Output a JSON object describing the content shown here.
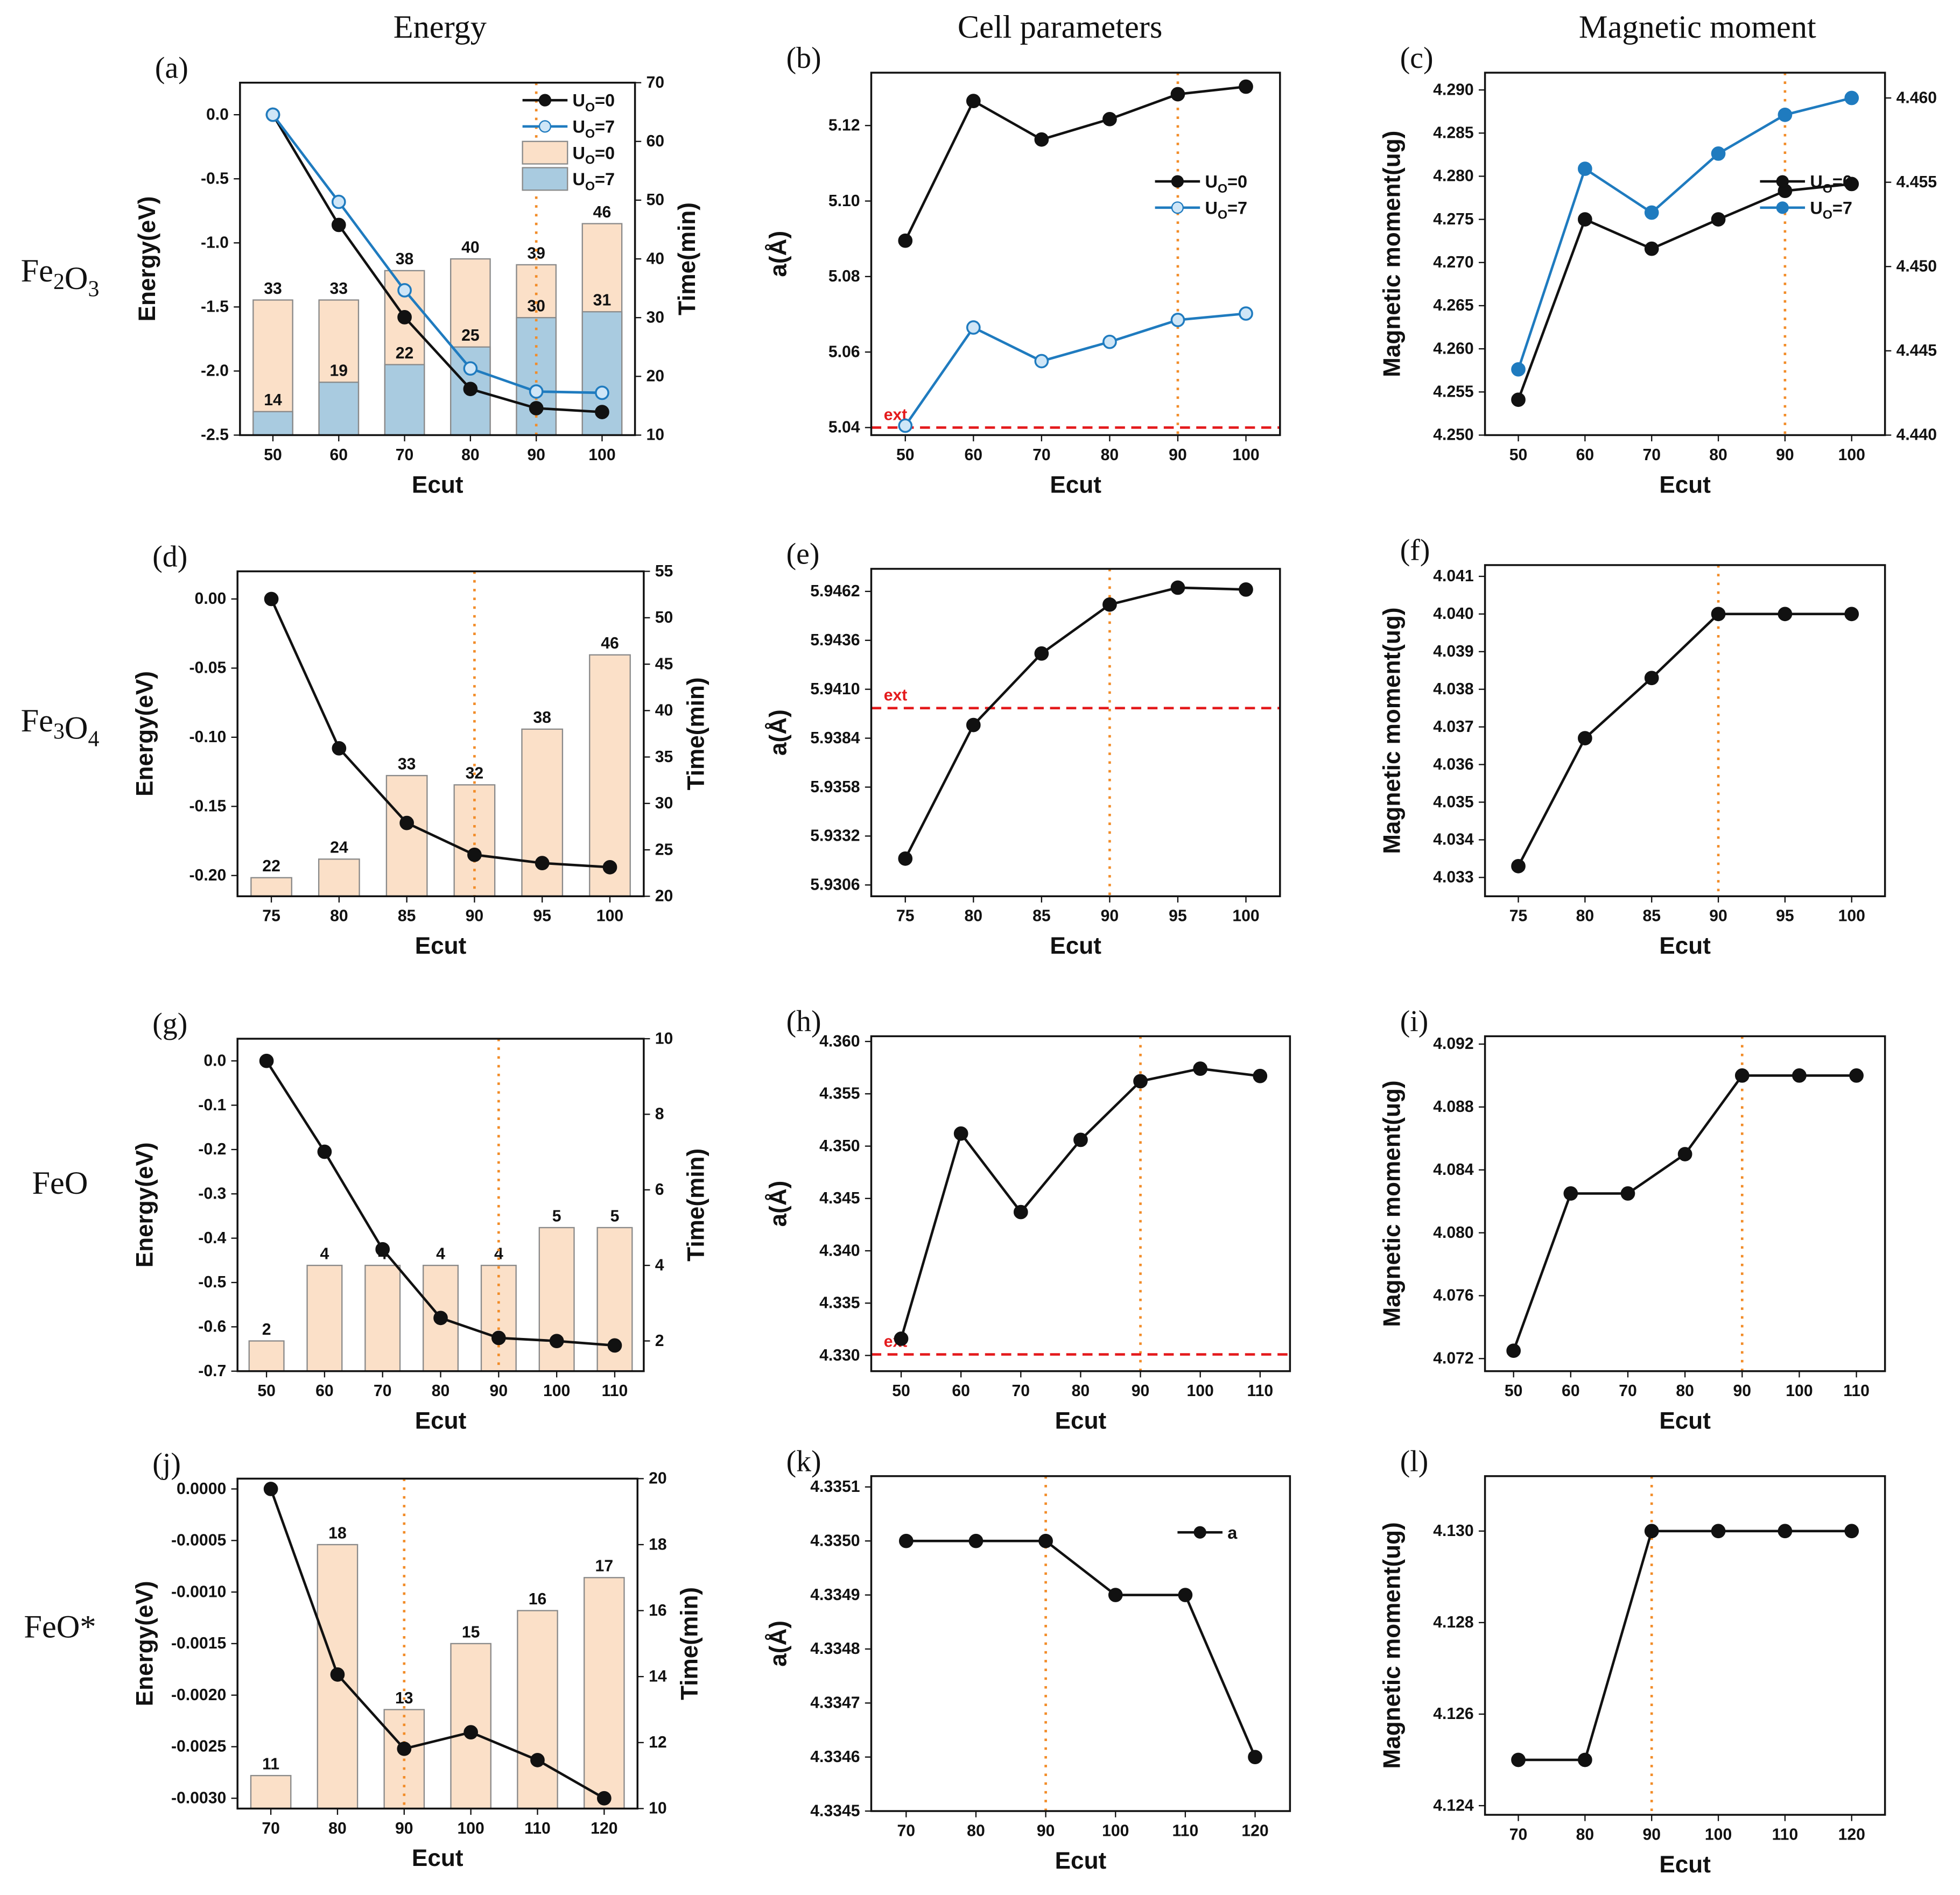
{
  "column_titles": [
    "Energy",
    "Cell parameters",
    "Magnetic moment"
  ],
  "row_labels": [
    "Fe2O3",
    "Fe3O4",
    "FeO",
    "FeO*"
  ],
  "colors": {
    "black_series": "#111111",
    "blue_series": "#1f7bbf",
    "bar_u0": "#fbe0c8",
    "bar_u7": "#a9cbe0",
    "ext_line": "#e41a1c",
    "selected_ecut": "#f28c28"
  },
  "selected_ecut": 90,
  "chart_data": [
    {
      "id": "a",
      "panel_label": "(a)",
      "type": "bar+line",
      "xlabel": "Ecut",
      "ylabel": "Energy(eV)",
      "y2label": "Time(min)",
      "x": [
        50,
        60,
        70,
        80,
        90,
        100
      ],
      "xlim": [
        45,
        105
      ],
      "ylim": [
        -2.5,
        0.25
      ],
      "yticks": [
        -2.5,
        -2.0,
        -1.5,
        -1.0,
        -0.5,
        0.0
      ],
      "yfmt": 1,
      "y2lim": [
        10,
        70
      ],
      "y2ticks": [
        10,
        20,
        30,
        40,
        50,
        60,
        70
      ],
      "y2fmt": 0,
      "series": [
        {
          "name": "UO=0",
          "values": [
            0,
            -0.86,
            -1.58,
            -2.14,
            -2.29,
            -2.32
          ],
          "color": "#111111",
          "marker": "filled"
        },
        {
          "name": "UO=7",
          "values": [
            0,
            -0.68,
            -1.37,
            -1.98,
            -2.16,
            -2.17
          ],
          "color": "#1f7bbf",
          "marker": "open"
        }
      ],
      "bars": [
        {
          "name": "UO=0",
          "values": [
            33,
            33,
            38,
            40,
            39,
            46
          ],
          "color": "#fbe0c8"
        },
        {
          "name": "UO=7",
          "values": [
            14,
            19,
            22,
            25,
            30,
            31
          ],
          "color": "#a9cbe0"
        }
      ],
      "legend": "top-right"
    },
    {
      "id": "b",
      "panel_label": "(b)",
      "type": "line",
      "xlabel": "Ecut",
      "ylabel": "a(Å)",
      "x": [
        50,
        60,
        70,
        80,
        90,
        100
      ],
      "xlim": [
        45,
        105
      ],
      "ylim": [
        5.038,
        5.134
      ],
      "yticks": [
        5.04,
        5.06,
        5.08,
        5.1,
        5.12
      ],
      "yfmt": 2,
      "series": [
        {
          "name": "UO=0",
          "values": [
            5.0895,
            5.1265,
            5.1163,
            5.1217,
            5.1283,
            5.1303
          ],
          "color": "#111111",
          "marker": "filled"
        },
        {
          "name": "UO=7",
          "values": [
            5.0405,
            5.0665,
            5.0576,
            5.0627,
            5.0685,
            5.0702
          ],
          "color": "#1f7bbf",
          "marker": "open"
        }
      ],
      "ext": {
        "label": "ext",
        "value": 5.04
      },
      "legend": "right"
    },
    {
      "id": "c",
      "panel_label": "(c)",
      "type": "line",
      "xlabel": "Ecut",
      "ylabel": "Magnetic moment(ug)",
      "x": [
        50,
        60,
        70,
        80,
        90,
        100
      ],
      "xlim": [
        45,
        105
      ],
      "ylim": [
        4.25,
        4.292
      ],
      "yticks": [
        4.25,
        4.255,
        4.26,
        4.265,
        4.27,
        4.275,
        4.28,
        4.285,
        4.29
      ],
      "yfmt": 3,
      "y2lim": [
        4.44,
        4.4615
      ],
      "y2ticks": [
        4.44,
        4.445,
        4.45,
        4.455,
        4.46
      ],
      "y2fmt": 3,
      "y2color": "#1f7bbf",
      "series": [
        {
          "name": "UO=0",
          "values": [
            4.2541,
            4.275,
            4.2716,
            4.275,
            4.2783,
            4.2791
          ],
          "color": "#111111",
          "marker": "filled"
        },
        {
          "name": "UO=7",
          "values": [
            4.4439,
            4.4558,
            4.4532,
            4.4567,
            4.459,
            4.46
          ],
          "color": "#1f7bbf",
          "marker": "filled",
          "axis": "right"
        }
      ],
      "legend": "right"
    },
    {
      "id": "d",
      "panel_label": "(d)",
      "type": "bar+line",
      "xlabel": "Ecut",
      "ylabel": "Energy(eV)",
      "y2label": "Time(min)",
      "x": [
        75,
        80,
        85,
        90,
        95,
        100
      ],
      "xlim": [
        72.5,
        102.5
      ],
      "ylim": [
        -0.215,
        0.02
      ],
      "yticks": [
        -0.2,
        -0.15,
        -0.1,
        -0.05,
        0.0
      ],
      "yfmt": 2,
      "y2lim": [
        20,
        55
      ],
      "y2ticks": [
        20,
        25,
        30,
        35,
        40,
        45,
        50,
        55
      ],
      "y2fmt": 0,
      "series": [
        {
          "name": "Energy",
          "values": [
            0,
            -0.108,
            -0.162,
            -0.185,
            -0.191,
            -0.194
          ],
          "color": "#111111",
          "marker": "filled"
        }
      ],
      "bars": [
        {
          "name": "Time",
          "values": [
            22,
            24,
            33,
            32,
            38,
            46
          ],
          "color": "#fbe0c8"
        }
      ]
    },
    {
      "id": "e",
      "panel_label": "(e)",
      "type": "line",
      "xlabel": "Ecut",
      "ylabel": "a(Å)",
      "x": [
        75,
        80,
        85,
        90,
        95,
        100
      ],
      "xlim": [
        72.5,
        102.5
      ],
      "ylim": [
        5.93,
        5.9474
      ],
      "yticks": [
        5.9306,
        5.9332,
        5.9358,
        5.9384,
        5.941,
        5.9436,
        5.9462
      ],
      "yfmt": 4,
      "series": [
        {
          "name": "a",
          "values": [
            5.932,
            5.9391,
            5.9429,
            5.9455,
            5.9464,
            5.9463
          ],
          "color": "#111111",
          "marker": "filled"
        }
      ],
      "ext": {
        "label": "ext",
        "value": 5.94
      }
    },
    {
      "id": "f",
      "panel_label": "(f)",
      "type": "line",
      "xlabel": "Ecut",
      "ylabel": "Magnetic moment(ug)",
      "x": [
        75,
        80,
        85,
        90,
        95,
        100
      ],
      "xlim": [
        72.5,
        102.5
      ],
      "ylim": [
        4.0325,
        4.0413
      ],
      "yticks": [
        4.033,
        4.034,
        4.035,
        4.036,
        4.037,
        4.038,
        4.039,
        4.04,
        4.041
      ],
      "yfmt": 3,
      "series": [
        {
          "name": "mag",
          "values": [
            4.0333,
            4.0367,
            4.0383,
            4.04,
            4.04,
            4.04
          ],
          "color": "#111111",
          "marker": "filled"
        }
      ]
    },
    {
      "id": "g",
      "panel_label": "(g)",
      "type": "bar+line",
      "xlabel": "Ecut",
      "ylabel": "Energy(eV)",
      "y2label": "Time(min)",
      "x": [
        50,
        60,
        70,
        80,
        90,
        100,
        110
      ],
      "xlim": [
        45,
        115
      ],
      "ylim": [
        -0.7,
        0.05
      ],
      "yticks": [
        -0.7,
        -0.6,
        -0.5,
        -0.4,
        -0.3,
        -0.2,
        -0.1,
        0.0
      ],
      "yfmt": 1,
      "y2lim": [
        1.2,
        10
      ],
      "y2ticks": [
        2,
        4,
        6,
        8,
        10
      ],
      "y2fmt": 0,
      "series": [
        {
          "name": "Energy",
          "values": [
            0,
            -0.205,
            -0.425,
            -0.58,
            -0.625,
            -0.632,
            -0.642
          ],
          "color": "#111111",
          "marker": "filled"
        }
      ],
      "bars": [
        {
          "name": "Time",
          "values": [
            2,
            4,
            4,
            4,
            4,
            5,
            5
          ],
          "color": "#fbe0c8"
        }
      ]
    },
    {
      "id": "h",
      "panel_label": "(h)",
      "type": "line",
      "xlabel": "Ecut",
      "ylabel": "a(Å)",
      "x": [
        50,
        60,
        70,
        80,
        90,
        100,
        110
      ],
      "xlim": [
        45,
        115
      ],
      "ylim": [
        4.3285,
        4.3605
      ],
      "yticks": [
        4.33,
        4.335,
        4.34,
        4.345,
        4.35,
        4.355,
        4.36
      ],
      "yfmt": 3,
      "series": [
        {
          "name": "a",
          "values": [
            4.3316,
            4.3512,
            4.3437,
            4.3506,
            4.3562,
            4.3574,
            4.3567
          ],
          "color": "#111111",
          "marker": "filled"
        }
      ],
      "ext": {
        "label": "ext",
        "value": 4.3301
      }
    },
    {
      "id": "i",
      "panel_label": "(i)",
      "type": "line",
      "xlabel": "Ecut",
      "ylabel": "Magnetic moment(ug)",
      "x": [
        50,
        60,
        70,
        80,
        90,
        100,
        110
      ],
      "xlim": [
        45,
        115
      ],
      "ylim": [
        4.0712,
        4.0925
      ],
      "yticks": [
        4.072,
        4.076,
        4.08,
        4.084,
        4.088,
        4.092
      ],
      "yfmt": 3,
      "series": [
        {
          "name": "mag",
          "values": [
            4.0725,
            4.0825,
            4.0825,
            4.085,
            4.09,
            4.09,
            4.09
          ],
          "color": "#111111",
          "marker": "filled"
        }
      ]
    },
    {
      "id": "j",
      "panel_label": "(j)",
      "type": "bar+line",
      "xlabel": "Ecut",
      "ylabel": "Energy(eV)",
      "y2label": "Time(min)",
      "x": [
        70,
        80,
        90,
        100,
        110,
        120
      ],
      "xlim": [
        65,
        125
      ],
      "ylim": [
        -0.0031,
        0.0001
      ],
      "yticks": [
        -0.003,
        -0.0025,
        -0.002,
        -0.0015,
        -0.001,
        -0.0005,
        0.0
      ],
      "yfmt": 4,
      "y2lim": [
        10,
        20
      ],
      "y2ticks": [
        10,
        12,
        14,
        16,
        18,
        20
      ],
      "y2fmt": 0,
      "series": [
        {
          "name": "Energy",
          "values": [
            0,
            -0.0018,
            -0.00252,
            -0.00236,
            -0.00263,
            -0.003
          ],
          "color": "#111111",
          "marker": "filled"
        }
      ],
      "bars": [
        {
          "name": "Time",
          "values": [
            11,
            18,
            13,
            15,
            16,
            17
          ],
          "color": "#fbe0c8"
        }
      ]
    },
    {
      "id": "k",
      "panel_label": "(k)",
      "type": "line",
      "xlabel": "Ecut",
      "ylabel": "a(Å)",
      "x": [
        70,
        80,
        90,
        100,
        110,
        120
      ],
      "xlim": [
        65,
        125
      ],
      "ylim": [
        4.3345,
        4.33512
      ],
      "yticks": [
        4.3345,
        4.3346,
        4.3347,
        4.3348,
        4.3349,
        4.335,
        4.3351
      ],
      "yfmt": 4,
      "series": [
        {
          "name": "a",
          "values": [
            4.335,
            4.335,
            4.335,
            4.3349,
            4.3349,
            4.3346
          ],
          "color": "#111111",
          "marker": "filled"
        }
      ],
      "legend": "top-right"
    },
    {
      "id": "l",
      "panel_label": "(l)",
      "type": "line",
      "xlabel": "Ecut",
      "ylabel": "Magnetic moment(ug)",
      "x": [
        70,
        80,
        90,
        100,
        110,
        120
      ],
      "xlim": [
        65,
        125
      ],
      "ylim": [
        4.1238,
        4.1312
      ],
      "yticks": [
        4.124,
        4.126,
        4.128,
        4.13
      ],
      "yfmt": 3,
      "series": [
        {
          "name": "mag",
          "values": [
            4.125,
            4.125,
            4.13,
            4.13,
            4.13,
            4.13
          ],
          "color": "#111111",
          "marker": "filled"
        }
      ]
    }
  ]
}
